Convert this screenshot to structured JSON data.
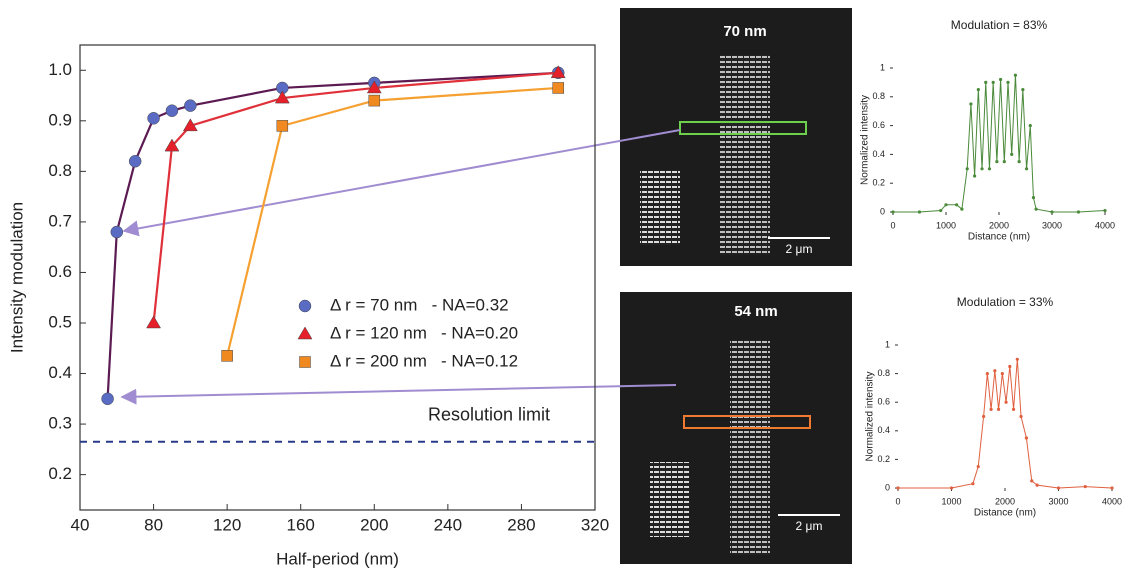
{
  "chart_data": [
    {
      "type": "line",
      "x_label": "Half-period (nm)",
      "y_label": "Intensity modulation",
      "xlim": [
        40,
        320
      ],
      "ylim": [
        0.13,
        1.05
      ],
      "xticks": [
        40,
        80,
        120,
        160,
        200,
        240,
        280,
        320
      ],
      "yticks": [
        0.2,
        0.3,
        0.4,
        0.5,
        0.6,
        0.7,
        0.8,
        0.9,
        {
          "value": 1,
          "label": "1.0"
        }
      ],
      "resolution_limit": {
        "label": "Resolution limit",
        "value": 0.265
      },
      "series": [
        {
          "name": "Δ r = 70 nm   - NA=0.32",
          "color": "#5a6bc4",
          "line_color": "#5c1a52",
          "marker": "circle",
          "x": [
            55,
            60,
            70,
            80,
            90,
            100,
            150,
            200,
            300
          ],
          "values": [
            0.35,
            0.68,
            0.82,
            0.905,
            0.92,
            0.93,
            0.965,
            0.975,
            0.995
          ]
        },
        {
          "name": "Δ r = 120 nm   - NA=0.20",
          "color": "#e5202a",
          "line_color": "#e0303a",
          "marker": "triangle",
          "x": [
            80,
            90,
            100,
            150,
            200,
            300
          ],
          "values": [
            0.5,
            0.85,
            0.89,
            0.945,
            0.965,
            0.995
          ]
        },
        {
          "name": "Δ r = 200 nm   - NA=0.12",
          "color": "#f08a20",
          "line_color": "#f5a030",
          "marker": "square",
          "x": [
            120,
            150,
            200,
            300
          ],
          "values": [
            0.435,
            0.89,
            0.94,
            0.965
          ]
        }
      ]
    },
    {
      "type": "line",
      "title": "Modulation = 83%",
      "x_label": "Distance (nm)",
      "y_label": "Normalized intensity",
      "xlim": [
        0,
        4000
      ],
      "ylim": [
        0,
        1
      ],
      "xticks": [
        0,
        1000,
        2000,
        3000,
        4000
      ],
      "yticks": [
        0,
        0.2,
        0.4,
        0.6,
        0.8,
        1
      ],
      "color": "#4a8a3a",
      "x": [
        0,
        500,
        900,
        1000,
        1200,
        1300,
        1400,
        1470,
        1540,
        1610,
        1680,
        1750,
        1820,
        1890,
        1960,
        2030,
        2100,
        2170,
        2240,
        2310,
        2380,
        2450,
        2520,
        2590,
        2650,
        2700,
        3000,
        3500,
        4000
      ],
      "values": [
        0,
        0,
        0.01,
        0.05,
        0.05,
        0.02,
        0.3,
        0.75,
        0.25,
        0.85,
        0.3,
        0.9,
        0.3,
        0.9,
        0.35,
        0.92,
        0.35,
        0.9,
        0.4,
        0.95,
        0.35,
        0.85,
        0.3,
        0.6,
        0.1,
        0.02,
        0,
        0,
        0.01
      ]
    },
    {
      "type": "line",
      "title": "Modulation = 33%",
      "x_label": "Distance (nm)",
      "y_label": "Normalized intensity",
      "xlim": [
        0,
        4000
      ],
      "ylim": [
        0,
        1
      ],
      "xticks": [
        0,
        1000,
        2000,
        3000,
        4000
      ],
      "yticks": [
        0,
        0.2,
        0.4,
        0.6,
        0.8,
        1
      ],
      "color": "#e06040",
      "x": [
        0,
        1000,
        1400,
        1500,
        1600,
        1670,
        1740,
        1810,
        1880,
        1950,
        2020,
        2090,
        2160,
        2230,
        2300,
        2400,
        2500,
        2600,
        3000,
        3500,
        4000
      ],
      "values": [
        0,
        0,
        0.03,
        0.15,
        0.5,
        0.8,
        0.55,
        0.82,
        0.55,
        0.8,
        0.6,
        0.85,
        0.55,
        0.9,
        0.5,
        0.35,
        0.05,
        0.02,
        0,
        0.01,
        0
      ]
    }
  ],
  "images": [
    {
      "label": "70 nm",
      "scale": "2 μm"
    },
    {
      "label": "54 nm",
      "scale": "2 μm"
    }
  ]
}
